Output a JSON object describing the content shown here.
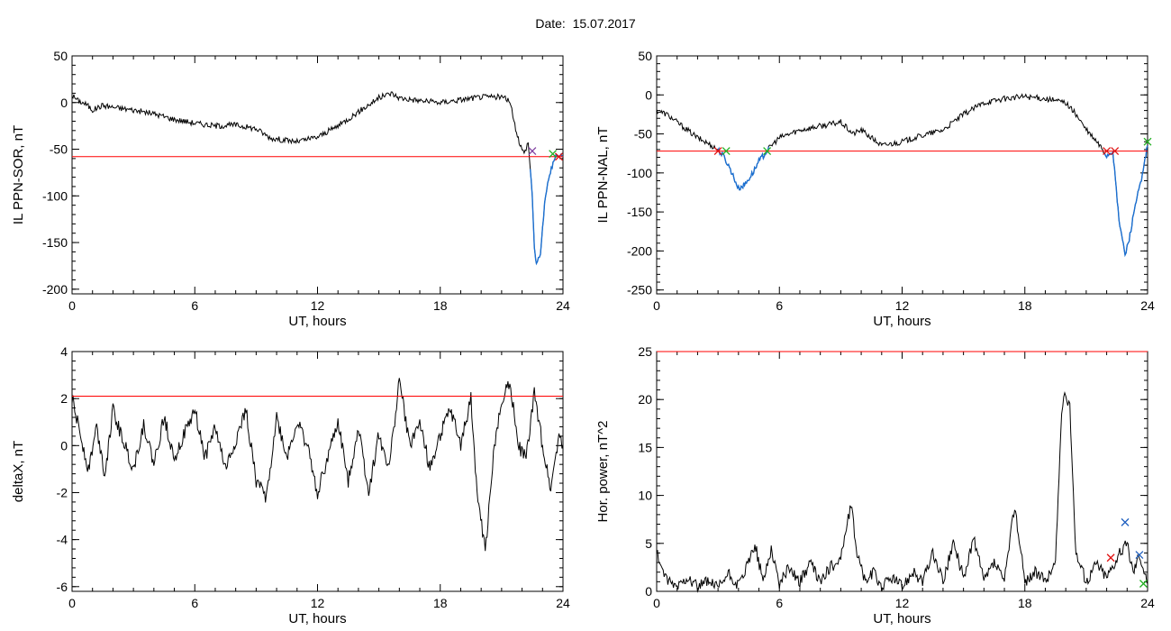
{
  "header": {
    "date_label": "Date:",
    "date_value": "15.07.2017"
  },
  "colors": {
    "axis": "#000000",
    "trace": "#000000",
    "threshold": "#ff0000",
    "highlight": "#1a6fd1",
    "marker_red": "#e01010",
    "marker_green": "#20b020",
    "marker_blue": "#2060c0",
    "marker_purple": "#8040a0"
  },
  "chart_data": [
    {
      "id": "sor",
      "type": "line",
      "title": "",
      "xlabel": "UT, hours",
      "ylabel": "IL PPN-SOR, nT",
      "xlim": [
        0,
        24
      ],
      "ylim": [
        -205,
        50
      ],
      "xticks": [
        0,
        6,
        12,
        18,
        24
      ],
      "yticks": [
        50,
        0,
        -50,
        -100,
        -150,
        -200
      ],
      "threshold": -58,
      "series": [
        {
          "x": [
            0,
            0.3,
            0.7,
            1.0,
            1.5,
            2.0,
            3.0,
            4.0,
            5.0,
            6.0,
            7.0,
            8.0,
            9.0,
            9.7,
            10.3,
            11.0,
            12.0,
            13.0,
            14.0,
            15.0,
            15.6,
            16.0,
            17.0,
            18.0,
            19.0,
            20.0,
            21.0,
            21.4,
            21.6,
            21.9,
            22.1,
            22.3,
            22.5,
            22.6,
            22.7,
            22.9,
            23.1,
            23.3,
            23.6,
            23.8,
            24.0
          ],
          "values": [
            8,
            2,
            -2,
            -8,
            -3,
            -5,
            -8,
            -12,
            -18,
            -22,
            -25,
            -24,
            -28,
            -38,
            -40,
            -42,
            -37,
            -25,
            -10,
            5,
            10,
            5,
            2,
            0,
            3,
            6,
            6,
            2,
            -20,
            -45,
            -55,
            -42,
            -100,
            -155,
            -175,
            -160,
            -110,
            -80,
            -60,
            -55,
            -58
          ]
        }
      ],
      "markers": [
        {
          "x": 22.5,
          "y": -52,
          "color": "#8040a0"
        },
        {
          "x": 23.5,
          "y": -55,
          "color": "#20b020"
        },
        {
          "x": 23.8,
          "y": -58,
          "color": "#e01010"
        }
      ]
    },
    {
      "id": "nal",
      "type": "line",
      "title": "",
      "xlabel": "UT, hours",
      "ylabel": "IL PPN-NAL, nT",
      "xlim": [
        0,
        24
      ],
      "ylim": [
        -255,
        50
      ],
      "xticks": [
        0,
        6,
        12,
        18,
        24
      ],
      "yticks": [
        50,
        0,
        -50,
        -100,
        -150,
        -200,
        -250
      ],
      "threshold": -72,
      "series": [
        {
          "x": [
            0,
            0.5,
            1.0,
            1.5,
            2.0,
            2.5,
            3.0,
            3.3,
            3.6,
            4.0,
            4.3,
            4.7,
            5.0,
            5.3,
            5.6,
            6.0,
            6.5,
            7.0,
            8.0,
            9.0,
            9.6,
            10.0,
            10.5,
            11.0,
            12.0,
            13.0,
            14.0,
            14.5,
            15.0,
            16.0,
            17.0,
            18.0,
            19.0,
            20.0,
            20.5,
            21.0,
            21.5,
            21.8,
            22.0,
            22.3,
            22.6,
            22.9,
            23.1,
            23.4,
            23.7,
            24.0
          ],
          "values": [
            -20,
            -25,
            -35,
            -45,
            -55,
            -62,
            -70,
            -80,
            -95,
            -120,
            -115,
            -100,
            -85,
            -75,
            -65,
            -55,
            -50,
            -45,
            -40,
            -35,
            -50,
            -45,
            -55,
            -65,
            -60,
            -52,
            -45,
            -35,
            -25,
            -10,
            -5,
            -2,
            -5,
            -10,
            -25,
            -45,
            -60,
            -70,
            -78,
            -72,
            -160,
            -205,
            -185,
            -140,
            -110,
            -65
          ]
        }
      ],
      "markers": [
        {
          "x": 3.0,
          "y": -72,
          "color": "#e01010"
        },
        {
          "x": 3.4,
          "y": -72,
          "color": "#20b020"
        },
        {
          "x": 5.4,
          "y": -72,
          "color": "#20b020"
        },
        {
          "x": 22.0,
          "y": -72,
          "color": "#e01010"
        },
        {
          "x": 22.4,
          "y": -72,
          "color": "#e01010"
        },
        {
          "x": 24.0,
          "y": -60,
          "color": "#20b020"
        }
      ]
    },
    {
      "id": "deltax",
      "type": "line",
      "title": "",
      "xlabel": "UT, hours",
      "ylabel": "deltaX, nT",
      "xlim": [
        0,
        24
      ],
      "ylim": [
        -6.2,
        4
      ],
      "xticks": [
        0,
        6,
        12,
        18,
        24
      ],
      "yticks": [
        4,
        2,
        0,
        -2,
        -4,
        -6
      ],
      "threshold": 2.1,
      "series": [
        {
          "x": [
            0,
            0.4,
            0.8,
            1.2,
            1.6,
            2.0,
            2.5,
            3.0,
            3.5,
            4.0,
            4.5,
            5.0,
            5.5,
            6.0,
            6.5,
            7.0,
            7.5,
            8.0,
            8.5,
            9.0,
            9.5,
            10.0,
            10.5,
            11.0,
            11.5,
            12.0,
            12.5,
            13.0,
            13.5,
            14.0,
            14.5,
            15.0,
            15.5,
            16.0,
            16.5,
            17.0,
            17.5,
            18.0,
            18.5,
            19.0,
            19.5,
            19.8,
            20.2,
            20.6,
            21.0,
            21.4,
            21.8,
            22.2,
            22.6,
            23.0,
            23.4,
            23.8,
            24.0
          ],
          "values": [
            2.0,
            0.5,
            -1.0,
            0.8,
            -1.2,
            1.5,
            0.2,
            -1.0,
            0.9,
            -0.8,
            1.2,
            -0.5,
            0.5,
            1.5,
            -0.5,
            0.8,
            -1.0,
            0.2,
            1.5,
            -1.5,
            -2.2,
            1.2,
            -0.5,
            1.0,
            0.0,
            -2.0,
            -0.5,
            1.0,
            -1.5,
            0.8,
            -2.0,
            0.5,
            -1.0,
            2.8,
            0.0,
            1.0,
            -1.0,
            0.5,
            1.5,
            0.0,
            2.0,
            -2.0,
            -4.5,
            -0.5,
            2.0,
            2.8,
            0.0,
            -0.5,
            2.2,
            0.0,
            -1.8,
            0.5,
            0.0
          ]
        }
      ],
      "markers": []
    },
    {
      "id": "power",
      "type": "line",
      "title": "",
      "xlabel": "UT, hours",
      "ylabel": "Hor. power, nT^2",
      "xlim": [
        0,
        24
      ],
      "ylim": [
        0,
        25
      ],
      "xticks": [
        0,
        6,
        12,
        18,
        24
      ],
      "yticks": [
        25,
        20,
        15,
        10,
        5,
        0
      ],
      "threshold": 25,
      "series": [
        {
          "x": [
            0,
            0.5,
            1.0,
            1.5,
            2.0,
            2.5,
            3.0,
            3.5,
            4.0,
            4.5,
            4.8,
            5.2,
            5.6,
            6.0,
            6.5,
            7.0,
            7.5,
            8.0,
            8.5,
            9.0,
            9.5,
            9.8,
            10.2,
            10.6,
            11.0,
            11.5,
            12.0,
            12.5,
            13.0,
            13.5,
            14.0,
            14.5,
            15.0,
            15.5,
            16.0,
            16.5,
            17.0,
            17.5,
            18.0,
            18.5,
            19.0,
            19.5,
            19.8,
            20.0,
            20.2,
            20.5,
            21.0,
            21.5,
            22.0,
            22.5,
            23.0,
            23.3,
            23.6,
            24.0
          ],
          "values": [
            4.0,
            1.0,
            0.5,
            1.5,
            0.5,
            1.0,
            0.3,
            1.8,
            0.5,
            3.0,
            5.0,
            1.0,
            4.5,
            0.8,
            2.5,
            1.0,
            3.0,
            1.0,
            2.5,
            3.5,
            9.0,
            4.0,
            1.0,
            2.0,
            0.5,
            1.5,
            0.5,
            2.0,
            1.0,
            4.0,
            1.0,
            5.0,
            1.5,
            5.5,
            1.0,
            3.0,
            1.0,
            9.0,
            1.0,
            2.0,
            1.0,
            3.0,
            19.0,
            20.5,
            19.0,
            4.0,
            1.0,
            3.0,
            1.5,
            3.5,
            5.0,
            2.0,
            4.0,
            0.8
          ]
        }
      ],
      "markers": [
        {
          "x": 22.9,
          "y": 7.2,
          "color": "#2060c0"
        },
        {
          "x": 23.6,
          "y": 3.8,
          "color": "#2060c0"
        },
        {
          "x": 22.2,
          "y": 3.5,
          "color": "#e01010"
        },
        {
          "x": 23.8,
          "y": 0.8,
          "color": "#20b020"
        }
      ]
    }
  ]
}
